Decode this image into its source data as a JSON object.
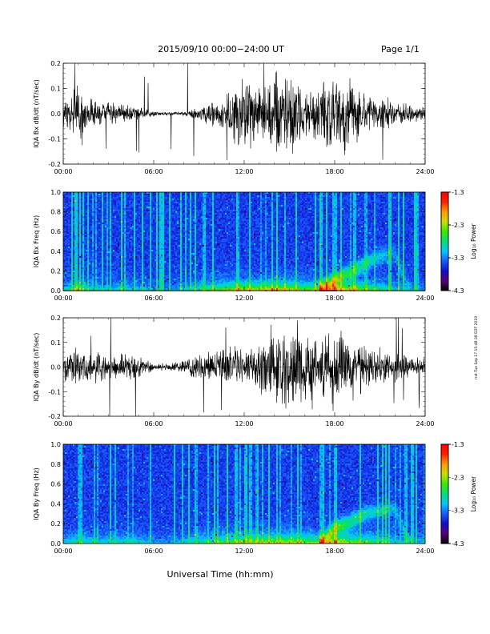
{
  "header": {
    "title": "2015/09/10  00:00−24:00 UT",
    "page_label": "Page 1/1"
  },
  "footer": {
    "xlabel": "Universal Time (hh:mm)",
    "timestamp": "rrxt Tue Sep 17 15:48:38 EDT 2019"
  },
  "colors": {
    "trace": "#000000",
    "colormap": [
      "#000000",
      "#5a0078",
      "#1010c8",
      "#1a5aff",
      "#00c8ff",
      "#00e07a",
      "#3ce800",
      "#c8e000",
      "#ff9a00",
      "#ff2000",
      "#ff0000"
    ]
  },
  "chart_data": [
    {
      "type": "line",
      "ylabel": "IQA Bx dB/dt (nT/sec)",
      "xlim": [
        "00:00",
        "24:00"
      ],
      "ylim": [
        -0.2,
        0.2
      ],
      "x_ticks": [
        "00:00",
        "06:00",
        "12:00",
        "18:00",
        "24:00"
      ],
      "y_ticks": [
        "-0.2",
        "-0.1",
        "0.0",
        "0.1",
        "0.2"
      ],
      "series": [
        {
          "x_hours": [
            0,
            1,
            2,
            3,
            4,
            5,
            6,
            7,
            8,
            9,
            10,
            11,
            12,
            13,
            14,
            15,
            16,
            17,
            18,
            19,
            20,
            21,
            22,
            23,
            24
          ],
          "amplitude_envelope": [
            0.06,
            0.12,
            0.06,
            0.05,
            0.05,
            0.03,
            0.01,
            0.008,
            0.01,
            0.03,
            0.06,
            0.1,
            0.2,
            0.12,
            0.18,
            0.2,
            0.1,
            0.13,
            0.2,
            0.15,
            0.09,
            0.08,
            0.06,
            0.04,
            0.03
          ]
        }
      ]
    },
    {
      "type": "heatmap",
      "ylabel": "IQA Bx Freq (Hz)",
      "xlim": [
        "00:00",
        "24:00"
      ],
      "ylim": [
        0.0,
        1.0
      ],
      "x_ticks": [
        "00:00",
        "06:00",
        "12:00",
        "18:00",
        "24:00"
      ],
      "y_ticks": [
        "0.0",
        "0.2",
        "0.4",
        "0.6",
        "0.8",
        "1.0"
      ],
      "colorbar": {
        "label": "Log₁₀ Power",
        "ticks": [
          "-1.3",
          "-2.3",
          "-3.3",
          "-4.3"
        ],
        "range": [
          -4.3,
          -1.3
        ]
      },
      "x_hours": [
        0,
        1,
        2,
        3,
        4,
        5,
        6,
        7,
        8,
        9,
        10,
        11,
        12,
        13,
        14,
        15,
        16,
        17,
        18,
        19,
        20,
        21,
        22,
        23,
        24
      ],
      "low_freq_activity": [
        0.3,
        0.6,
        0.35,
        0.3,
        0.4,
        0.3,
        0.2,
        0.2,
        0.3,
        0.45,
        0.6,
        0.75,
        0.9,
        0.8,
        0.95,
        0.9,
        0.7,
        0.8,
        1.0,
        0.85,
        0.7,
        0.5,
        0.35,
        0.25,
        0.2
      ],
      "band_peak_freq_hz": [
        0.0,
        0.0,
        0.0,
        0.0,
        0.0,
        0.0,
        0.0,
        0.0,
        0.0,
        0.0,
        0.0,
        0.0,
        0.0,
        0.0,
        0.0,
        0.0,
        0.0,
        0.0,
        0.1,
        0.18,
        0.27,
        0.35,
        0.38,
        0.0,
        0.0
      ]
    },
    {
      "type": "line",
      "ylabel": "IQA By dB/dt (nT/sec)",
      "xlim": [
        "00:00",
        "24:00"
      ],
      "ylim": [
        -0.2,
        0.2
      ],
      "x_ticks": [
        "00:00",
        "06:00",
        "12:00",
        "18:00",
        "24:00"
      ],
      "y_ticks": [
        "-0.2",
        "-0.1",
        "0.0",
        "0.1",
        "0.2"
      ],
      "series": [
        {
          "x_hours": [
            0,
            1,
            2,
            3,
            4,
            5,
            6,
            7,
            8,
            9,
            10,
            11,
            12,
            13,
            14,
            15,
            16,
            17,
            18,
            19,
            20,
            21,
            22,
            23,
            24
          ],
          "amplitude_envelope": [
            0.06,
            0.09,
            0.07,
            0.06,
            0.07,
            0.05,
            0.02,
            0.015,
            0.03,
            0.06,
            0.09,
            0.1,
            0.09,
            0.12,
            0.15,
            0.2,
            0.15,
            0.14,
            0.2,
            0.16,
            0.1,
            0.09,
            0.07,
            0.05,
            0.04
          ]
        }
      ]
    },
    {
      "type": "heatmap",
      "ylabel": "IQA By Freq (Hz)",
      "xlim": [
        "00:00",
        "24:00"
      ],
      "ylim": [
        0.0,
        1.0
      ],
      "x_ticks": [
        "00:00",
        "06:00",
        "12:00",
        "18:00",
        "24:00"
      ],
      "y_ticks": [
        "0.0",
        "0.2",
        "0.4",
        "0.6",
        "0.8",
        "1.0"
      ],
      "colorbar": {
        "label": "Log₁₀ Power",
        "ticks": [
          "-1.3",
          "-2.3",
          "-3.3",
          "-4.3"
        ],
        "range": [
          -4.3,
          -1.3
        ]
      },
      "x_hours": [
        0,
        1,
        2,
        3,
        4,
        5,
        6,
        7,
        8,
        9,
        10,
        11,
        12,
        13,
        14,
        15,
        16,
        17,
        18,
        19,
        20,
        21,
        22,
        23,
        24
      ],
      "low_freq_activity": [
        0.35,
        0.5,
        0.4,
        0.4,
        0.45,
        0.4,
        0.25,
        0.2,
        0.3,
        0.5,
        0.65,
        0.7,
        0.75,
        0.85,
        0.9,
        0.95,
        0.8,
        0.8,
        1.0,
        0.85,
        0.7,
        0.55,
        0.4,
        0.3,
        0.25
      ],
      "band_peak_freq_hz": [
        0.0,
        0.0,
        0.0,
        0.0,
        0.0,
        0.0,
        0.0,
        0.0,
        0.0,
        0.0,
        0.0,
        0.0,
        0.0,
        0.0,
        0.0,
        0.0,
        0.0,
        0.0,
        0.15,
        0.22,
        0.3,
        0.33,
        0.35,
        0.0,
        0.0
      ]
    }
  ]
}
